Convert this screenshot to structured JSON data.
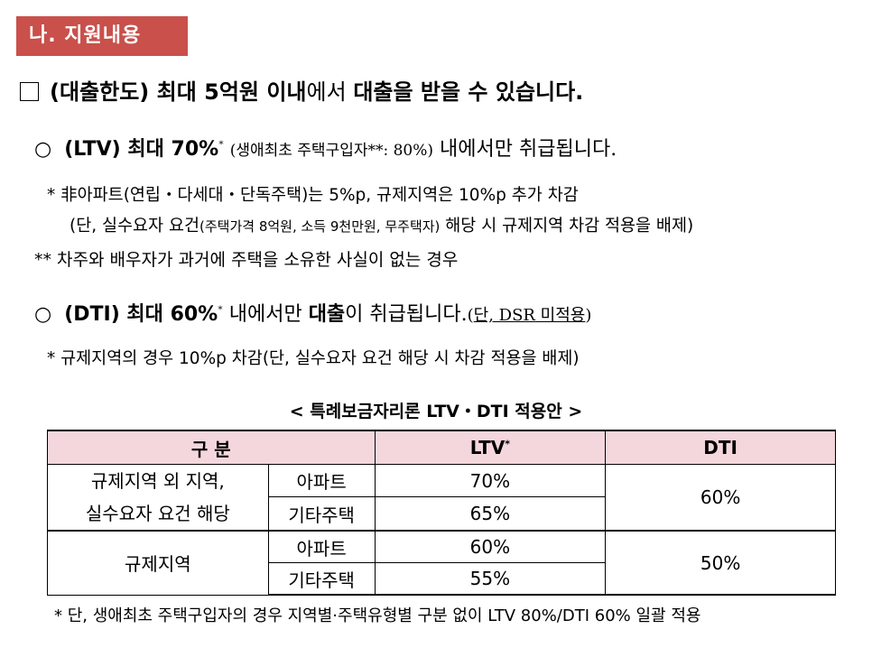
{
  "section_tag": "나. 지원내용",
  "heading": {
    "part1": "(대출한도) 최대 5억원 이내",
    "part2": "에서 ",
    "part3": "대출을 받을 수 있습니다."
  },
  "ltv_line": {
    "label": "(LTV) 최대 70%",
    "mark": "*",
    "note": "(생애최초 주택구입자**: 80%)",
    "rest": "내에서만 취급됩니다."
  },
  "ltv_note1": "* 非아파트(연립・다세대・단독주택)는 5%p, 규제지역은 10%p 추가 차감",
  "ltv_note2": {
    "start": "(단, 실수요자 요건",
    "small": "(주택가격 8억원, 소득 9천만원, 무주택자)",
    "end": " 해당 시 규제지역 차감 적용을 배제)"
  },
  "ltv_note3": "** 차주와 배우자가 과거에 주택을 소유한 사실이 없는 경우",
  "dti_line": {
    "label": "(DTI) 최대 60%",
    "mark": "*",
    "mid": " 내에서만 ",
    "bold": "대출",
    "rest": "이 취급됩니다.",
    "paren_open": "(",
    "underlined": "단, DSR 미적용",
    "paren_close": ")"
  },
  "dti_note": "* 규제지역의 경우 10%p 차감(단, 실수요자 요건 해당 시 차감 적용을 배제)",
  "table": {
    "title": "< 특례보금자리론 LTV・DTI 적용안 >",
    "headers": {
      "category": "구   분",
      "ltv": "LTV",
      "ltv_mark": "*",
      "dti": "DTI"
    },
    "groups": [
      {
        "name_line1": "규제지역 외 지역,",
        "name_line2": "실수요자 요건 해당",
        "rows": [
          {
            "type": "아파트",
            "ltv": "70%"
          },
          {
            "type": "기타주택",
            "ltv": "65%"
          }
        ],
        "dti": "60%"
      },
      {
        "name_line1": "규제지역",
        "name_line2": "",
        "rows": [
          {
            "type": "아파트",
            "ltv": "60%"
          },
          {
            "type": "기타주택",
            "ltv": "55%"
          }
        ],
        "dti": "50%"
      }
    ]
  },
  "footnote": "* 단, 생애최초 주택구입자의 경우 지역별·주택유형별 구분 없이 LTV 80%/DTI 60% 일괄 적용",
  "colors": {
    "section_tag_bg": "#c9504b",
    "table_header_bg": "#f4d7dc"
  }
}
